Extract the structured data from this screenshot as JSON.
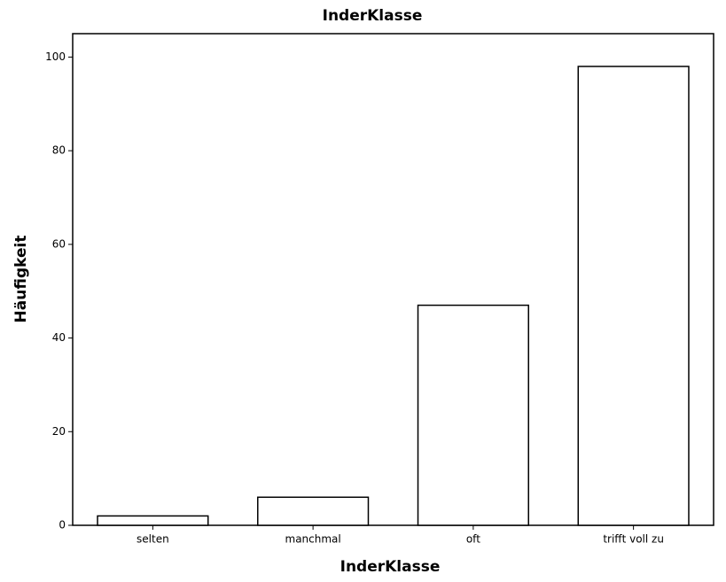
{
  "chart_data": {
    "type": "bar",
    "title": "InderKlasse",
    "x_label": "InderKlasse",
    "y_label": "Häufigkeit",
    "categories": [
      "selten",
      "manchmal",
      "oft",
      "trifft voll zu"
    ],
    "values": [
      2,
      6,
      47,
      98
    ],
    "color": "#ffffff",
    "ylim": [
      0,
      105
    ],
    "yticks": [
      0,
      20,
      40,
      60,
      80,
      100
    ],
    "grid": false
  }
}
